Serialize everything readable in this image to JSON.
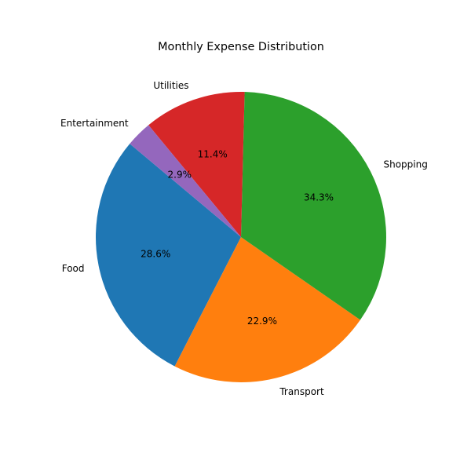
{
  "chart_data": {
    "type": "pie",
    "title": "Monthly Expense Distribution",
    "categories": [
      "Food",
      "Transport",
      "Shopping",
      "Utilities",
      "Entertainment"
    ],
    "values": [
      28.6,
      22.9,
      34.3,
      11.4,
      2.9
    ],
    "percent_labels": [
      "28.6%",
      "22.9%",
      "34.3%",
      "11.4%",
      "2.9%"
    ],
    "colors": [
      "#1f77b4",
      "#ff7f0e",
      "#2ca02c",
      "#d62728",
      "#9467bd"
    ],
    "start_angle_deg": 140,
    "direction": "counterclockwise",
    "legend": "none"
  }
}
